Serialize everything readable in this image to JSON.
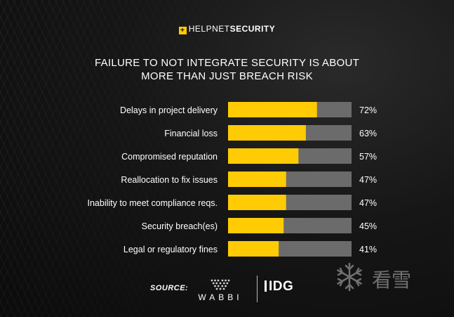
{
  "brand": {
    "part1": "HELPNET",
    "part2": "SECURITY",
    "mark": "+"
  },
  "title_line1": "FAILURE TO NOT INTEGRATE SECURITY IS ABOUT",
  "title_line2": "MORE THAN JUST BREACH RISK",
  "chart_data": {
    "type": "bar",
    "orientation": "horizontal",
    "categories": [
      "Delays in project delivery",
      "Financial loss",
      "Compromised reputation",
      "Reallocation to fix issues",
      "Inability to meet compliance reqs.",
      "Security breach(es)",
      "Legal or regulatory fines"
    ],
    "values": [
      72,
      63,
      57,
      47,
      47,
      45,
      41
    ],
    "value_labels": [
      "72%",
      "63%",
      "57%",
      "47%",
      "47%",
      "45%",
      "41%"
    ],
    "xlim": [
      0,
      100
    ],
    "grid": false,
    "colors": {
      "bar": "#ffcb05",
      "track": "#6b6b6b"
    }
  },
  "footer": {
    "source_label": "SOURCE:",
    "source1": "WABBI",
    "source2": "IDG"
  },
  "watermark_text": "看雪"
}
